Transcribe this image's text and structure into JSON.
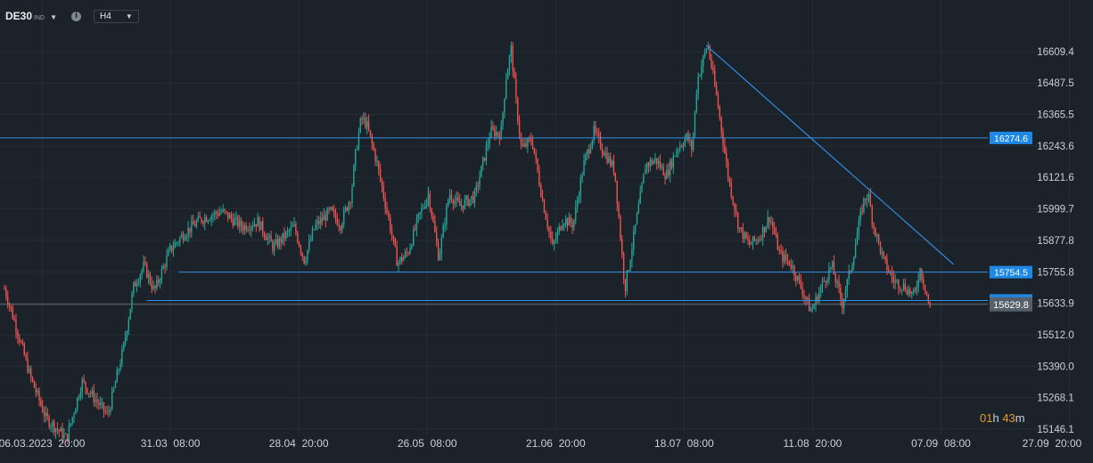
{
  "toolbar": {
    "symbol": "DE30",
    "symbol_type": "IND",
    "timeframe": "H4",
    "info_icon": "info-icon",
    "dropdown_icon": "caret-down-icon"
  },
  "countdown": {
    "hours": "01",
    "h": "h",
    "minutes": "43",
    "m": "m"
  },
  "colors": {
    "background": "#1b2229",
    "grid": "#262e36",
    "up": "#26a69a",
    "down": "#ef5350",
    "trendline": "#2f8ee6",
    "level_label_bg": "#1e88e5",
    "current_label_bg": "#56606a",
    "axis_text": "#c9d1d9"
  },
  "chart_data": {
    "type": "candlestick",
    "ylim": [
      15146.1,
      16671
    ],
    "y_ticks": [
      "16609.4",
      "16487.5",
      "16365.5",
      "16243.6",
      "16121.6",
      "15999.7",
      "15877.8",
      "15755.8",
      "15633.9",
      "15512.0",
      "15390.0",
      "15268.1",
      "15146.1"
    ],
    "x_ticks": [
      "06.03.2023  20:00",
      "31.03  08:00",
      "28.04  20:00",
      "26.05  08:00",
      "21.06  20:00",
      "18.07  08:00",
      "11.08  20:00",
      "07.09  08:00",
      "27.09  20:00"
    ],
    "x_tick_positions": [
      0,
      0.1242,
      0.2484,
      0.3726,
      0.4968,
      0.621,
      0.7452,
      0.8694,
      0.9936
    ],
    "grid": true,
    "price_path": [
      [
        0,
        15690
      ],
      [
        0.01,
        15560
      ],
      [
        0.025,
        15350
      ],
      [
        0.04,
        15190
      ],
      [
        0.06,
        15110
      ],
      [
        0.075,
        15330
      ],
      [
        0.09,
        15250
      ],
      [
        0.1,
        15200
      ],
      [
        0.115,
        15460
      ],
      [
        0.125,
        15700
      ],
      [
        0.135,
        15780
      ],
      [
        0.145,
        15680
      ],
      [
        0.16,
        15840
      ],
      [
        0.175,
        15910
      ],
      [
        0.19,
        15960
      ],
      [
        0.21,
        15990
      ],
      [
        0.23,
        15930
      ],
      [
        0.245,
        15950
      ],
      [
        0.26,
        15850
      ],
      [
        0.28,
        15930
      ],
      [
        0.29,
        15800
      ],
      [
        0.3,
        15930
      ],
      [
        0.315,
        15990
      ],
      [
        0.325,
        15940
      ],
      [
        0.335,
        16050
      ],
      [
        0.34,
        16230
      ],
      [
        0.345,
        16350
      ],
      [
        0.35,
        16330
      ],
      [
        0.36,
        16180
      ],
      [
        0.372,
        15950
      ],
      [
        0.38,
        15790
      ],
      [
        0.39,
        15830
      ],
      [
        0.4,
        15960
      ],
      [
        0.41,
        16060
      ],
      [
        0.42,
        15810
      ],
      [
        0.43,
        16060
      ],
      [
        0.44,
        16010
      ],
      [
        0.455,
        16050
      ],
      [
        0.47,
        16300
      ],
      [
        0.48,
        16290
      ],
      [
        0.485,
        16510
      ],
      [
        0.49,
        16620
      ],
      [
        0.495,
        16400
      ],
      [
        0.5,
        16230
      ],
      [
        0.51,
        16270
      ],
      [
        0.52,
        16040
      ],
      [
        0.53,
        15850
      ],
      [
        0.54,
        15960
      ],
      [
        0.55,
        15940
      ],
      [
        0.56,
        16170
      ],
      [
        0.57,
        16300
      ],
      [
        0.58,
        16220
      ],
      [
        0.59,
        16150
      ],
      [
        0.6,
        15690
      ],
      [
        0.61,
        15930
      ],
      [
        0.62,
        16170
      ],
      [
        0.63,
        16190
      ],
      [
        0.64,
        16130
      ],
      [
        0.65,
        16230
      ],
      [
        0.66,
        16280
      ],
      [
        0.665,
        16230
      ],
      [
        0.67,
        16500
      ],
      [
        0.68,
        16640
      ],
      [
        0.69,
        16400
      ],
      [
        0.7,
        16120
      ],
      [
        0.71,
        15930
      ],
      [
        0.72,
        15860
      ],
      [
        0.73,
        15890
      ],
      [
        0.74,
        15970
      ],
      [
        0.75,
        15820
      ],
      [
        0.76,
        15790
      ],
      [
        0.77,
        15700
      ],
      [
        0.78,
        15600
      ],
      [
        0.79,
        15700
      ],
      [
        0.8,
        15780
      ],
      [
        0.81,
        15630
      ],
      [
        0.82,
        15800
      ],
      [
        0.83,
        16020
      ],
      [
        0.835,
        16060
      ],
      [
        0.84,
        15940
      ],
      [
        0.85,
        15800
      ],
      [
        0.86,
        15720
      ],
      [
        0.87,
        15700
      ],
      [
        0.88,
        15660
      ],
      [
        0.885,
        15770
      ],
      [
        0.89,
        15700
      ],
      [
        0.895,
        15610
      ]
    ],
    "horizontal_levels": [
      {
        "price": 16274.6,
        "label": "16274.6",
        "from": 0,
        "to": 0.97
      },
      {
        "price": 15754.5,
        "label": "15754.5",
        "from": 0.173,
        "to": 0.97
      },
      {
        "price": 15644.8,
        "label": "15644.8",
        "from": 0.142,
        "to": 0.97
      }
    ],
    "trendline": {
      "from": [
        0.683,
        16633
      ],
      "to": [
        0.922,
        15785
      ]
    },
    "current_price": {
      "price": 15629.8,
      "label": "15629.8"
    }
  }
}
